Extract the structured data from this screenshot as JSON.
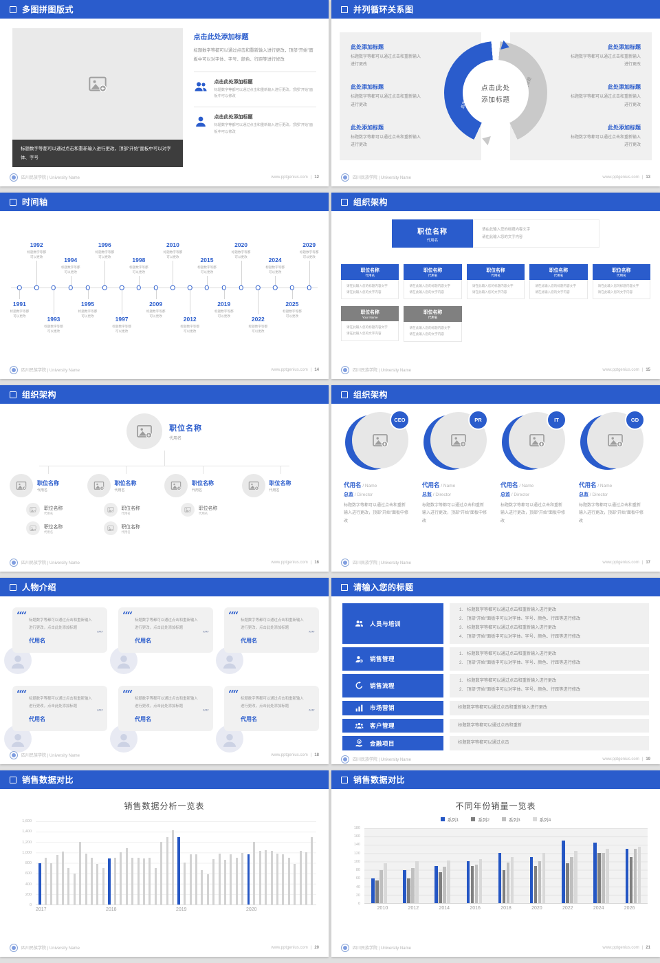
{
  "footer": {
    "brand": "四川民族学院 | University Name",
    "site": "www.pptgenius.com"
  },
  "colors": {
    "accent": "#2a5ccc",
    "header_blue": "#2a5ccc",
    "dark_caption": "#3d3d3d",
    "panel_gray": "#f0f0f0",
    "org_gray_header": "#808080"
  },
  "slides": [
    {
      "title": "多图拼图版式",
      "page": "12",
      "image_caption": "标题数字等都可以通过点击和重新输入进行更改，顶部“开始”面板中可以对字体、字号",
      "heading": "点击此处添加标题",
      "paragraph": "标题数字等都可以通过点击和重新输入进行更改，顶部“开始”面板中可以对字体、字号、颜色、行距等进行修改",
      "items": [
        {
          "icon": "two-people-icon",
          "title": "点击此处添加标题",
          "text": "标题数字等都可以通过点击和重新输入进行更改，顶部“开始”面板中可以修改"
        },
        {
          "icon": "person-icon",
          "title": "点击此处添加标题",
          "text": "标题数字等都可以通过点击和重新输入进行更改，顶部“开始”面板中可以修改"
        }
      ]
    },
    {
      "title": "并列循环关系图",
      "page": "13",
      "center_line1": "点击此处",
      "center_line2": "添加标题",
      "arc_label_left": "点击此处添加标题",
      "arc_label_right": "点击此处添加标题",
      "left_items": [
        {
          "title": "此处添加标题",
          "text": "标题数字等都可以通过点击和重新输入进行更改"
        },
        {
          "title": "此处添加标题",
          "text": "标题数字等都可以通过点击和重新输入进行更改"
        },
        {
          "title": "此处添加标题",
          "text": "标题数字等都可以通过点击和重新输入进行更改"
        }
      ],
      "right_items": [
        {
          "title": "此处添加标题",
          "text": "标题数字等都可以通过点击和重新输入进行更改"
        },
        {
          "title": "此处添加标题",
          "text": "标题数字等都可以通过点击和重新输入进行更改"
        },
        {
          "title": "此处添加标题",
          "text": "标题数字等都可以通过点击和重新输入进行更改"
        }
      ]
    },
    {
      "title": "时间轴",
      "page": "14",
      "caption": "标题数字等都可以更改",
      "events": [
        {
          "year": "1991",
          "pos": "bottom",
          "far": false
        },
        {
          "year": "1992",
          "pos": "top",
          "far": true
        },
        {
          "year": "1993",
          "pos": "bottom",
          "far": true
        },
        {
          "year": "1994",
          "pos": "top",
          "far": false
        },
        {
          "year": "1995",
          "pos": "bottom",
          "far": false
        },
        {
          "year": "1996",
          "pos": "top",
          "far": true
        },
        {
          "year": "1997",
          "pos": "bottom",
          "far": true
        },
        {
          "year": "1998",
          "pos": "top",
          "far": false
        },
        {
          "year": "2009",
          "pos": "bottom",
          "far": false
        },
        {
          "year": "2010",
          "pos": "top",
          "far": true
        },
        {
          "year": "2012",
          "pos": "bottom",
          "far": true
        },
        {
          "year": "2015",
          "pos": "top",
          "far": false
        },
        {
          "year": "2019",
          "pos": "bottom",
          "far": false
        },
        {
          "year": "2020",
          "pos": "top",
          "far": true
        },
        {
          "year": "2022",
          "pos": "bottom",
          "far": true
        },
        {
          "year": "2024",
          "pos": "top",
          "far": false
        },
        {
          "year": "2025",
          "pos": "bottom",
          "far": false
        },
        {
          "year": "2029",
          "pos": "top",
          "far": true
        }
      ]
    },
    {
      "title": "组织架构",
      "page": "15",
      "root": {
        "title": "职位名称",
        "sub": "代用名",
        "note1": "请在此输入您的标题内容文字",
        "note2": "请在此输入您的文字内容"
      },
      "cards": [
        {
          "title": "职位名称",
          "sub": "代用名",
          "line1": "请在此输入您的标题内容文字",
          "line2": "请在此输入您的文字内容"
        },
        {
          "title": "职位名称",
          "sub": "代用名",
          "line1": "请在此输入您的标题内容文字",
          "line2": "请在此输入您的文字内容"
        },
        {
          "title": "职位名称",
          "sub": "代用名",
          "line1": "请在此输入您的标题内容文字",
          "line2": "请在此输入您的文字内容"
        },
        {
          "title": "职位名称",
          "sub": "代用名",
          "line1": "请在此输入您的标题内容文字",
          "line2": "请在此输入您的文字内容"
        },
        {
          "title": "职位名称",
          "sub": "代用名",
          "line1": "请在此输入您的标题内容文字",
          "line2": "请在此输入您的文字内容"
        }
      ],
      "cards2": [
        {
          "title": "职位名称",
          "sub": "Your Name",
          "line1": "请在此输入您的标题内容文字",
          "line2": "请在此输入您的文字内容"
        },
        {
          "title": "职位名称",
          "sub": "代用名",
          "line1": "请在此输入您的标题内容文字",
          "line2": "请在此输入您的文字内容"
        }
      ]
    },
    {
      "title": "组织架构",
      "page": "16",
      "root": {
        "title": "职位名称",
        "sub": "代用名"
      },
      "branches": [
        {
          "title": "职位名称",
          "sub": "代用名",
          "children": [
            {
              "title": "职位名称",
              "sub": "代用名"
            },
            {
              "title": "职位名称",
              "sub": "代用名"
            }
          ]
        },
        {
          "title": "职位名称",
          "sub": "代用名",
          "children": [
            {
              "title": "职位名称",
              "sub": "代用名"
            },
            {
              "title": "职位名称",
              "sub": "代用名"
            }
          ]
        },
        {
          "title": "职位名称",
          "sub": "代用名",
          "children": [
            {
              "title": "职位名称",
              "sub": "代用名"
            }
          ]
        },
        {
          "title": "职位名称",
          "sub": "代用名",
          "children": []
        }
      ]
    },
    {
      "title": "组织架构",
      "page": "17",
      "profiles": [
        {
          "badge": "CEO",
          "name": "代用名",
          "name_en": "/ Name",
          "role": "总监",
          "role_en": "/ Director",
          "text": "标题数字等都可以通过点击和重新输入进行更改，顶部“开始”面板中修改"
        },
        {
          "badge": "PR",
          "name": "代用名",
          "name_en": "/ Name",
          "role": "总监",
          "role_en": "/ Director",
          "text": "标题数字等都可以通过点击和重新输入进行更改，顶部“开始”面板中修改"
        },
        {
          "badge": "IT",
          "name": "代用名",
          "name_en": "/ Name",
          "role": "总监",
          "role_en": "/ Director",
          "text": "标题数字等都可以通过点击和重新输入进行更改，顶部“开始”面板中修改"
        },
        {
          "badge": "GD",
          "name": "代用名",
          "name_en": "/ Name",
          "role": "总监",
          "role_en": "/ Director",
          "text": "标题数字等都可以通过点击和重新输入进行更改，顶部“开始”面板中修改"
        }
      ]
    },
    {
      "title": "人物介绍",
      "page": "18",
      "cards": [
        {
          "quote": "标题数字等都可以通过点击和重新输入进行更改，点击此处添加标题",
          "name": "代用名"
        },
        {
          "quote": "标题数字等都可以通过点击和重新输入进行更改，点击此处添加标题",
          "name": "代用名"
        },
        {
          "quote": "标题数字等都可以通过点击和重新输入进行更改，点击此处添加标题",
          "name": "代用名"
        },
        {
          "quote": "标题数字等都可以通过点击和重新输入进行更改，点击此处添加标题",
          "name": "代用名"
        },
        {
          "quote": "标题数字等都可以通过点击和重新输入进行更改，点击此处添加标题",
          "name": "代用名"
        },
        {
          "quote": "标题数字等都可以通过点击和重新输入进行更改，点击此处添加标题",
          "name": "代用名"
        }
      ]
    },
    {
      "title": "请输入您的标题",
      "page": "19",
      "rows": [
        {
          "icon": "people-training-icon",
          "label": "人员与培训",
          "numbered": true,
          "lines": [
            "标题数字等都可以通过点击和重新输入进行更改",
            "顶部“开始”面板中可以对字体、字号、颜色、行距等进行修改",
            "标题数字等都可以通过点击和重新输入进行更改",
            "顶部“开始”面板中可以对字体、字号、颜色、行距等进行修改"
          ]
        },
        {
          "icon": "sales-management-icon",
          "label": "销售管理",
          "numbered": true,
          "lines": [
            "标题数字等都可以通过点击和重新输入进行更改",
            "顶部“开始”面板中可以对字体、字号、颜色、行距等进行修改"
          ]
        },
        {
          "icon": "sales-process-icon",
          "label": "销售流程",
          "numbered": true,
          "lines": [
            "标题数字等都可以通过点击和重新输入进行更改",
            "顶部“开始”面板中可以对字体、字号、颜色、行距等进行修改"
          ]
        },
        {
          "icon": "marketing-icon",
          "label": "市场营销",
          "numbered": false,
          "lines": [
            "标题数字等都可以通过点击和重新输入进行更改"
          ]
        },
        {
          "icon": "customer-management-icon",
          "label": "客户管理",
          "numbered": false,
          "lines": [
            "标题数字等都可以通过点击和重新"
          ]
        },
        {
          "icon": "finance-project-icon",
          "label": "金融项目",
          "numbered": false,
          "lines": [
            "标题数字等都可以通过点击"
          ]
        }
      ]
    },
    {
      "title": "销售数据对比",
      "page": "20"
    },
    {
      "title": "销售数据对比",
      "page": "21"
    }
  ],
  "chart_data": [
    {
      "type": "bar",
      "title": "销售数据分析一览表",
      "xlabel": "",
      "ylabel": "",
      "ylim": [
        0,
        1600
      ],
      "yticks": [
        "1,600",
        "1,400",
        "1,200",
        "1,000",
        "800",
        "600",
        "400",
        "200",
        "0"
      ],
      "groups": [
        "2017",
        "2018",
        "2019",
        "2020"
      ],
      "highlight_color": "#2456c4",
      "bar_color": "#d2d2d2",
      "grid": true,
      "note": "first bar of each year group is highlighted blue",
      "values": [
        [
          800,
          900,
          800,
          950,
          1020,
          700,
          600,
          1200,
          980,
          900,
          780,
          700
        ],
        [
          890,
          900,
          1000,
          1090,
          900,
          900,
          880,
          900,
          700,
          1200,
          1300,
          1430
        ],
        [
          1300,
          810,
          960,
          970,
          660,
          580,
          870,
          980,
          860,
          960,
          900,
          990
        ],
        [
          960,
          1200,
          1030,
          1040,
          1030,
          980,
          970,
          900,
          780,
          1030,
          1010,
          1300
        ]
      ]
    },
    {
      "type": "bar",
      "title": "不同年份销量一览表",
      "xlabel": "",
      "ylabel": "",
      "ylim": [
        0,
        180
      ],
      "yticks": [
        "180",
        "160",
        "140",
        "120",
        "100",
        "80",
        "60",
        "40",
        "20",
        "0"
      ],
      "categories": [
        "2010",
        "2012",
        "2014",
        "2016",
        "2018",
        "2020",
        "2022",
        "2024",
        "2026"
      ],
      "legend_position": "top",
      "grid": true,
      "series": [
        {
          "name": "系列1",
          "color": "#2456c4",
          "values": [
            60,
            80,
            90,
            100,
            120,
            110,
            150,
            145,
            130
          ]
        },
        {
          "name": "系列2",
          "color": "#7f7f7f",
          "values": [
            55,
            60,
            75,
            90,
            80,
            90,
            95,
            120,
            110
          ]
        },
        {
          "name": "系列3",
          "color": "#bfbfbf",
          "values": [
            80,
            85,
            88,
            92,
            97,
            100,
            110,
            120,
            130
          ]
        },
        {
          "name": "系列4",
          "color": "#d9d9d9",
          "values": [
            95,
            100,
            102,
            105,
            110,
            120,
            125,
            130,
            135
          ]
        }
      ]
    }
  ]
}
